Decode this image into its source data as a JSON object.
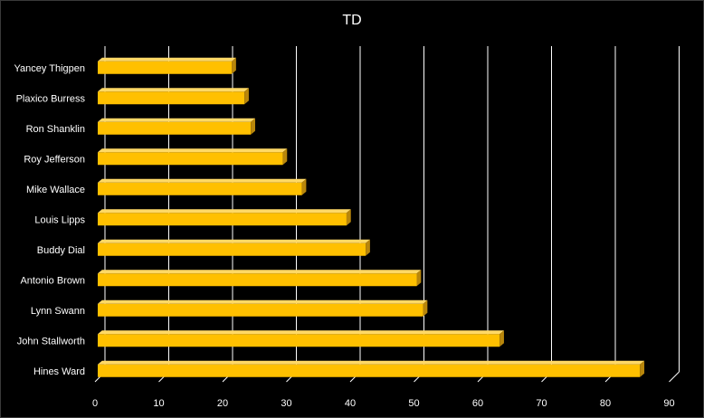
{
  "chart_data": {
    "type": "bar",
    "orientation": "horizontal",
    "title": "TD",
    "xlabel": "",
    "ylabel": "",
    "categories": [
      "Yancey Thigpen",
      "Plaxico Burress",
      "Ron Shanklin",
      "Roy Jefferson",
      "Mike Wallace",
      "Louis Lipps",
      "Buddy Dial",
      "Antonio Brown",
      "Lynn Swann",
      "John Stallworth",
      "Hines Ward"
    ],
    "values": [
      21,
      23,
      24,
      29,
      32,
      39,
      42,
      50,
      51,
      63,
      85
    ],
    "xlim": [
      0,
      90
    ],
    "xticks": [
      0,
      10,
      20,
      30,
      40,
      50,
      60,
      70,
      80,
      90
    ],
    "grid": true,
    "legend": "none",
    "style": "3d",
    "colors": {
      "background": "#000000",
      "bar_front": "#FFC000",
      "bar_top": "#FFD966",
      "bar_side": "#B8860B",
      "grid": "#FFFFFF",
      "text": "#FFFFFF"
    }
  }
}
